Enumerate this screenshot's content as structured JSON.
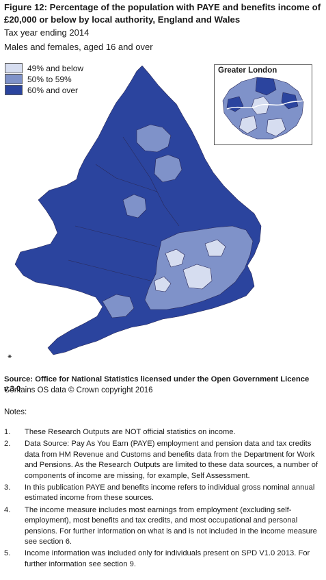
{
  "figure": {
    "title": "Figure 12: Percentage of the population with PAYE and benefits income of £20,000 or below by local authority, England and Wales",
    "subtitle1": "Tax year ending 2014",
    "subtitle2": "Males and females, aged 16 and over"
  },
  "legend": {
    "items": [
      {
        "label": "49% and below",
        "color": "#d6ddf0"
      },
      {
        "label": "50% to 59%",
        "color": "#7f92c9"
      },
      {
        "label": "60% and over",
        "color": "#2b449e"
      }
    ]
  },
  "map": {
    "inset_title": "Greater London",
    "region": "England and Wales",
    "border_color": "#2a2a5a"
  },
  "source": {
    "line1": "Source: Office for National Statistics licensed under the Open Government Licence v.3.0",
    "line2": "Contains OS data © Crown copyright 2016"
  },
  "notes": {
    "heading": "Notes:",
    "items": [
      {
        "num": "1.",
        "text": "These Research Outputs are NOT official statistics on income."
      },
      {
        "num": "2.",
        "text": "Data Source: Pay As You Earn (PAYE) employment and pension data and tax credits data from HM Revenue and Customs and benefits data from the Department for Work and Pensions. As the Research Outputs are limited to these data sources, a number of components of income are missing, for example, Self Assessment."
      },
      {
        "num": "3.",
        "text": "In this publication PAYE and benefits income refers to individual gross nominal annual estimated income from these sources."
      },
      {
        "num": "4.",
        "text": "The income measure includes most earnings from employment (excluding self-employment), most benefits and tax credits, and most occupational and personal pensions. For further information on what is and is not included in the income measure see section 6."
      },
      {
        "num": "5.",
        "text": "Income information was included only for individuals present on SPD V1.0 2013. For further information see section 9."
      }
    ]
  }
}
